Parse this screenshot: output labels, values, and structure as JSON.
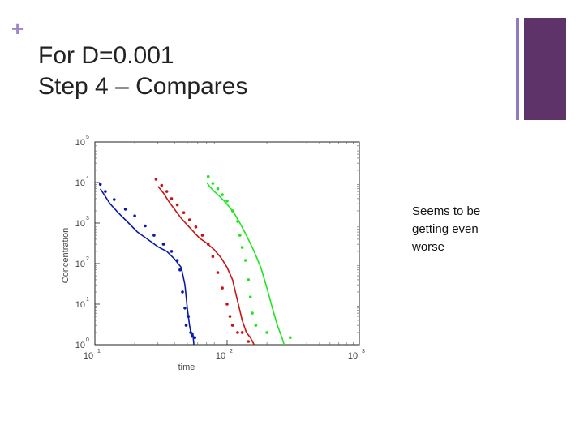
{
  "slide": {
    "plus": "+",
    "title_line1": "For D=0.001",
    "title_line2": "Step 4 – Compares",
    "note": "Seems to be getting even worse"
  },
  "colors": {
    "accent_thin": "#8e7cc3",
    "accent_thick": "#5e3369",
    "plus": "#9b87c9",
    "blue": "#0a1aa8",
    "red": "#c81414",
    "green": "#1ee61e"
  },
  "chart_data": {
    "type": "scatter",
    "xscale": "log",
    "yscale": "log",
    "xlim": [
      10,
      1000
    ],
    "ylim": [
      1,
      100000
    ],
    "xlabel": "time",
    "ylabel": "Concentration",
    "xticks": [
      {
        "base": "10",
        "exp": "1",
        "value": 10
      },
      {
        "base": "10",
        "exp": "2",
        "value": 100
      },
      {
        "base": "10",
        "exp": "3",
        "value": 1000
      }
    ],
    "yticks": [
      {
        "base": "10",
        "exp": "0",
        "value": 1
      },
      {
        "base": "10",
        "exp": "1",
        "value": 10
      },
      {
        "base": "10",
        "exp": "2",
        "value": 100
      },
      {
        "base": "10",
        "exp": "3",
        "value": 1000
      },
      {
        "base": "10",
        "exp": "4",
        "value": 10000
      },
      {
        "base": "10",
        "exp": "5",
        "value": 100000
      }
    ],
    "series": [
      {
        "color": "blue",
        "style": "line",
        "points": [
          [
            11,
            7000
          ],
          [
            12,
            4500
          ],
          [
            13,
            3000
          ],
          [
            15,
            1800
          ],
          [
            18,
            1000
          ],
          [
            21,
            600
          ],
          [
            25,
            400
          ],
          [
            30,
            260
          ],
          [
            35,
            200
          ],
          [
            40,
            130
          ],
          [
            45,
            80
          ],
          [
            48,
            30
          ],
          [
            50,
            8
          ],
          [
            52,
            3
          ],
          [
            54,
            1.5
          ],
          [
            55,
            2
          ],
          [
            56,
            1
          ]
        ]
      },
      {
        "color": "blue",
        "style": "markers",
        "points": [
          [
            11,
            9000
          ],
          [
            12,
            6000
          ],
          [
            14,
            3800
          ],
          [
            17,
            2200
          ],
          [
            20,
            1500
          ],
          [
            24,
            850
          ],
          [
            28,
            500
          ],
          [
            33,
            300
          ],
          [
            38,
            200
          ],
          [
            42,
            120
          ],
          [
            44,
            70
          ],
          [
            46,
            20
          ],
          [
            48,
            8
          ],
          [
            49,
            3
          ],
          [
            51,
            5
          ],
          [
            53,
            2
          ],
          [
            57,
            1.5
          ]
        ]
      },
      {
        "color": "red",
        "style": "line",
        "points": [
          [
            30,
            8000
          ],
          [
            33,
            5500
          ],
          [
            36,
            3500
          ],
          [
            40,
            2200
          ],
          [
            45,
            1300
          ],
          [
            50,
            900
          ],
          [
            56,
            600
          ],
          [
            62,
            420
          ],
          [
            70,
            320
          ],
          [
            80,
            220
          ],
          [
            90,
            140
          ],
          [
            100,
            80
          ],
          [
            110,
            40
          ],
          [
            120,
            12
          ],
          [
            130,
            4
          ],
          [
            140,
            2
          ],
          [
            150,
            1.5
          ],
          [
            160,
            1
          ]
        ]
      },
      {
        "color": "red",
        "style": "markers",
        "points": [
          [
            29,
            12000
          ],
          [
            32,
            8500
          ],
          [
            35,
            6000
          ],
          [
            38,
            4000
          ],
          [
            42,
            2800
          ],
          [
            47,
            1800
          ],
          [
            52,
            1200
          ],
          [
            58,
            800
          ],
          [
            65,
            500
          ],
          [
            72,
            300
          ],
          [
            78,
            150
          ],
          [
            85,
            60
          ],
          [
            92,
            25
          ],
          [
            100,
            10
          ],
          [
            105,
            5
          ],
          [
            110,
            3
          ],
          [
            120,
            2
          ],
          [
            130,
            2
          ],
          [
            145,
            1.2
          ]
        ]
      },
      {
        "color": "green",
        "style": "line",
        "points": [
          [
            70,
            10000
          ],
          [
            75,
            7500
          ],
          [
            80,
            6000
          ],
          [
            88,
            4500
          ],
          [
            95,
            3500
          ],
          [
            105,
            2400
          ],
          [
            115,
            1600
          ],
          [
            125,
            1000
          ],
          [
            140,
            500
          ],
          [
            160,
            200
          ],
          [
            180,
            80
          ],
          [
            200,
            25
          ],
          [
            220,
            8
          ],
          [
            240,
            3
          ],
          [
            260,
            1.5
          ],
          [
            270,
            1
          ]
        ]
      },
      {
        "color": "green",
        "style": "markers",
        "points": [
          [
            72,
            14000
          ],
          [
            78,
            9500
          ],
          [
            85,
            7000
          ],
          [
            92,
            5000
          ],
          [
            100,
            3500
          ],
          [
            110,
            2000
          ],
          [
            120,
            1100
          ],
          [
            125,
            500
          ],
          [
            130,
            250
          ],
          [
            138,
            120
          ],
          [
            145,
            40
          ],
          [
            150,
            15
          ],
          [
            155,
            6
          ],
          [
            165,
            3
          ],
          [
            200,
            2
          ],
          [
            300,
            1.5
          ]
        ]
      }
    ]
  }
}
